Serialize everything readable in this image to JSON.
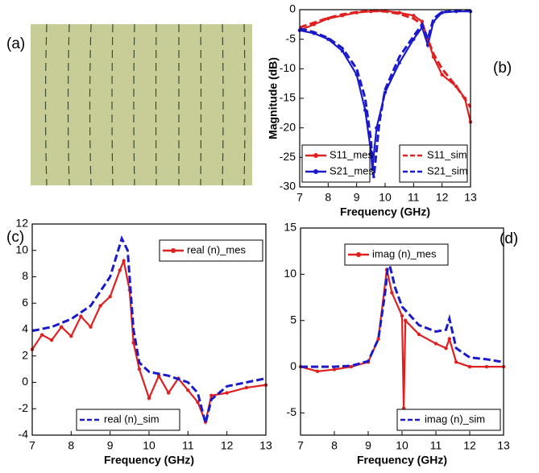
{
  "chart_data": [
    {
      "type": "image",
      "label": "(a)"
    },
    {
      "type": "line",
      "label": "(b)",
      "xlabel": "Frequency (GHz)",
      "ylabel": "Magnitude (dB)",
      "xlim": [
        7,
        13
      ],
      "ylim": [
        -30,
        0
      ],
      "xticks": [
        7,
        8,
        9,
        10,
        11,
        12,
        13
      ],
      "yticks": [
        0,
        -5,
        -10,
        -15,
        -20,
        -25,
        -30
      ],
      "series": [
        {
          "name": "S11_mes",
          "color": "#e02020",
          "dash": false,
          "marker": true,
          "legend": "lower-left",
          "x": [
            7,
            7.5,
            8,
            8.5,
            9,
            9.5,
            10,
            10.5,
            11,
            11.3,
            11.5,
            11.7,
            12,
            12.5,
            12.8,
            13
          ],
          "values": [
            -3.5,
            -2.5,
            -1.5,
            -1,
            -0.5,
            -0.3,
            -0.2,
            -0.5,
            -1,
            -2,
            -5,
            -8,
            -11,
            -13,
            -15,
            -19
          ]
        },
        {
          "name": "S21_mes",
          "color": "#1a1acc",
          "dash": false,
          "marker": true,
          "legend": "lower-left",
          "x": [
            7,
            7.5,
            8,
            8.5,
            9,
            9.3,
            9.5,
            9.55,
            9.7,
            10,
            10.5,
            11,
            11.3,
            11.5,
            11.7,
            12,
            12.5,
            13
          ],
          "values": [
            -3.5,
            -4,
            -5,
            -7,
            -11,
            -17,
            -24,
            -27,
            -20,
            -14,
            -9,
            -5,
            -3,
            -6,
            -2,
            -0.5,
            -0.3,
            -0.3
          ]
        },
        {
          "name": "S11_sim",
          "color": "#e02020",
          "dash": true,
          "marker": false,
          "legend": "lower-right",
          "x": [
            7,
            7.5,
            8,
            8.5,
            9,
            9.5,
            10,
            10.5,
            11,
            11.3,
            11.5,
            11.7,
            12,
            12.5,
            13
          ],
          "values": [
            -3,
            -2.2,
            -1.4,
            -0.8,
            -0.4,
            -0.2,
            -0.3,
            -0.7,
            -1.5,
            -2.5,
            -5,
            -7.5,
            -10,
            -13,
            -16.5
          ]
        },
        {
          "name": "S21_sim",
          "color": "#1a1acc",
          "dash": true,
          "marker": false,
          "legend": "lower-right",
          "x": [
            7,
            7.5,
            8,
            8.5,
            9,
            9.3,
            9.5,
            9.6,
            9.8,
            10,
            10.5,
            11,
            11.3,
            11.5,
            11.7,
            12,
            12.5,
            13
          ],
          "values": [
            -3.2,
            -3.8,
            -4.8,
            -6.5,
            -10,
            -15,
            -22,
            -28.5,
            -19,
            -13.5,
            -8,
            -4.5,
            -2.5,
            -5,
            -1.5,
            -0.4,
            -0.2,
            -0.2
          ]
        }
      ]
    },
    {
      "type": "line",
      "label": "(c)",
      "xlabel": "Frequency (GHz)",
      "xlim": [
        7,
        13
      ],
      "ylim": [
        -4,
        12
      ],
      "xticks": [
        7,
        8,
        9,
        10,
        11,
        12,
        13
      ],
      "yticks": [
        -4,
        -2,
        0,
        2,
        4,
        6,
        8,
        10,
        12
      ],
      "series": [
        {
          "name": "real (n)_mes",
          "color": "#e02020",
          "dash": false,
          "marker": true,
          "legend": "upper-right",
          "x": [
            7,
            7.25,
            7.5,
            7.75,
            8,
            8.25,
            8.5,
            8.75,
            9,
            9.25,
            9.35,
            9.5,
            9.6,
            9.75,
            10,
            10.25,
            10.5,
            10.75,
            11,
            11.25,
            11.45,
            11.6,
            12,
            12.5,
            13
          ],
          "values": [
            2.5,
            3.6,
            3.2,
            4.2,
            3.5,
            5,
            4.2,
            5.8,
            6.5,
            8.5,
            9.2,
            7,
            3,
            1,
            -1.2,
            0.5,
            -0.8,
            0.3,
            -0.6,
            -1.5,
            -3,
            -1,
            -0.8,
            -0.4,
            -0.2
          ]
        },
        {
          "name": "real (n)_sim",
          "color": "#1a1acc",
          "dash": true,
          "marker": false,
          "legend": "lower-left",
          "x": [
            7,
            7.5,
            8,
            8.5,
            9,
            9.3,
            9.45,
            9.6,
            9.75,
            10,
            10.5,
            11,
            11.25,
            11.45,
            11.6,
            12,
            12.5,
            13
          ],
          "values": [
            3.9,
            4.2,
            4.8,
            5.8,
            8,
            10.9,
            10,
            4,
            1.5,
            0.8,
            0.5,
            0,
            -0.8,
            -3.1,
            -1.3,
            -0.3,
            0,
            0.3
          ]
        }
      ]
    },
    {
      "type": "line",
      "label": "(d)",
      "xlabel": "Frequency (GHz)",
      "xlim": [
        7,
        13
      ],
      "ylim": [
        -7.4,
        15
      ],
      "xticks": [
        7,
        8,
        9,
        10,
        11,
        12,
        13
      ],
      "yticks": [
        -5,
        0,
        5,
        10,
        15
      ],
      "series": [
        {
          "name": "imag (n)_mes",
          "color": "#e02020",
          "dash": false,
          "marker": true,
          "legend": "upper-left",
          "x": [
            7,
            7.5,
            8,
            8.5,
            9,
            9.3,
            9.55,
            9.7,
            10,
            10.05,
            10.1,
            10.5,
            11,
            11.3,
            11.4,
            11.6,
            12,
            12.5,
            13
          ],
          "values": [
            0,
            -0.5,
            -0.3,
            0,
            0.5,
            3,
            10.5,
            8,
            5.5,
            -4.5,
            5,
            3.5,
            2.5,
            2,
            3,
            0.5,
            0,
            0,
            0
          ]
        },
        {
          "name": "imag (n)_sim",
          "color": "#1a1acc",
          "dash": true,
          "marker": false,
          "legend": "lower-right",
          "x": [
            7,
            8,
            8.5,
            9,
            9.3,
            9.5,
            9.6,
            9.8,
            10,
            10.5,
            11,
            11.3,
            11.4,
            11.6,
            12,
            12.5,
            13
          ],
          "values": [
            0,
            0,
            0.1,
            0.6,
            3,
            8,
            11.5,
            8.5,
            6.5,
            4.5,
            3.8,
            4,
            5.2,
            2,
            1,
            0.8,
            0.5
          ]
        }
      ]
    }
  ]
}
